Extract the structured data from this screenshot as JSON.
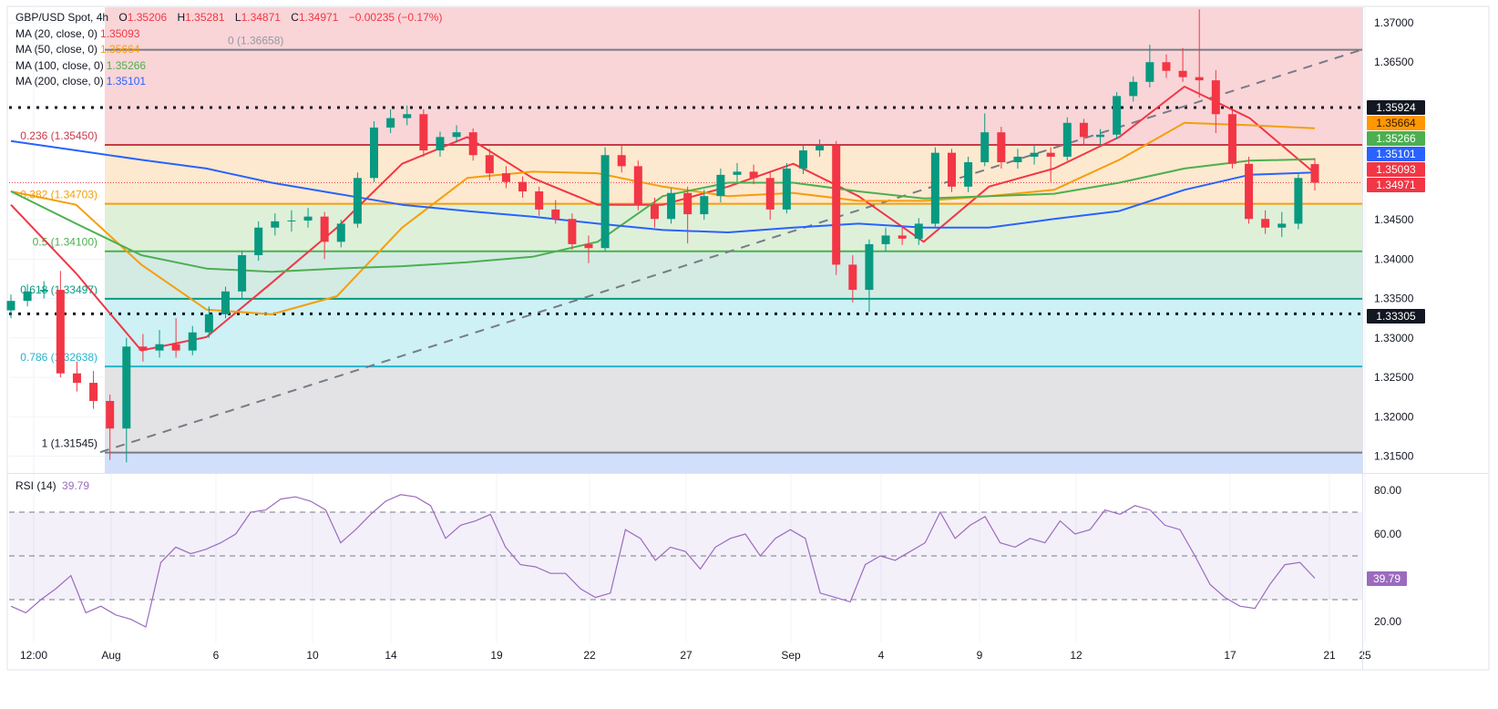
{
  "header": {
    "symbol": "GBP/USD Spot, 4h",
    "open_label": "O",
    "open": "1.35206",
    "high_label": "H",
    "high": "1.35281",
    "low_label": "L",
    "low": "1.34871",
    "close_label": "C",
    "close": "1.34971",
    "change": "−0.00235 (−0.17%)"
  },
  "colors": {
    "up": "#089981",
    "down": "#f23645",
    "ma20": "#f23645",
    "ma50": "#f59e0b",
    "ma100": "#4caf50",
    "ma200": "#2962ff",
    "rsi": "#9c6bbf",
    "dark_badge": "#131722"
  },
  "chart_data": {
    "type": "candlestick",
    "candles_ohlc": [
      [
        1.3335,
        1.3355,
        1.3325,
        1.3347
      ],
      [
        1.3347,
        1.3368,
        1.334,
        1.3359
      ],
      [
        1.3359,
        1.3372,
        1.335,
        1.3361
      ],
      [
        1.3361,
        1.3385,
        1.325,
        1.3255
      ],
      [
        1.3255,
        1.327,
        1.3232,
        1.3243
      ],
      [
        1.3243,
        1.3258,
        1.321,
        1.322
      ],
      [
        1.322,
        1.3228,
        1.3145,
        1.3185
      ],
      [
        1.3185,
        1.33,
        1.3142,
        1.3289
      ],
      [
        1.3289,
        1.3305,
        1.327,
        1.3284
      ],
      [
        1.3284,
        1.331,
        1.3275,
        1.3292
      ],
      [
        1.3292,
        1.3325,
        1.3275,
        1.3284
      ],
      [
        1.3284,
        1.3315,
        1.3278,
        1.3307
      ],
      [
        1.3307,
        1.334,
        1.33,
        1.333
      ],
      [
        1.333,
        1.3365,
        1.3325,
        1.3359
      ],
      [
        1.3359,
        1.341,
        1.335,
        1.3405
      ],
      [
        1.3405,
        1.3448,
        1.3398,
        1.344
      ],
      [
        1.344,
        1.3458,
        1.343,
        1.3448
      ],
      [
        1.3448,
        1.3462,
        1.3435,
        1.3449
      ],
      [
        1.3449,
        1.3465,
        1.344,
        1.3454
      ],
      [
        1.3454,
        1.346,
        1.34,
        1.3422
      ],
      [
        1.3422,
        1.345,
        1.3415,
        1.3445
      ],
      [
        1.3445,
        1.351,
        1.344,
        1.3503
      ],
      [
        1.3503,
        1.3575,
        1.3498,
        1.3567
      ],
      [
        1.3567,
        1.359,
        1.356,
        1.3579
      ],
      [
        1.3579,
        1.3595,
        1.357,
        1.3584
      ],
      [
        1.3584,
        1.359,
        1.353,
        1.3538
      ],
      [
        1.3538,
        1.3562,
        1.353,
        1.3555
      ],
      [
        1.3555,
        1.357,
        1.3548,
        1.3561
      ],
      [
        1.3561,
        1.3566,
        1.3525,
        1.3532
      ],
      [
        1.3532,
        1.354,
        1.35,
        1.3509
      ],
      [
        1.3509,
        1.3518,
        1.349,
        1.3498
      ],
      [
        1.3498,
        1.3505,
        1.3478,
        1.3486
      ],
      [
        1.3486,
        1.3492,
        1.3455,
        1.3463
      ],
      [
        1.3463,
        1.3475,
        1.3445,
        1.3451
      ],
      [
        1.3451,
        1.3458,
        1.3412,
        1.3419
      ],
      [
        1.3419,
        1.343,
        1.3395,
        1.3414
      ],
      [
        1.3414,
        1.3542,
        1.341,
        1.3532
      ],
      [
        1.3532,
        1.3545,
        1.351,
        1.3518
      ],
      [
        1.3518,
        1.3525,
        1.3462,
        1.3469
      ],
      [
        1.3469,
        1.3478,
        1.344,
        1.3451
      ],
      [
        1.3451,
        1.349,
        1.3445,
        1.3484
      ],
      [
        1.3484,
        1.3492,
        1.342,
        1.3457
      ],
      [
        1.3457,
        1.3488,
        1.345,
        1.348
      ],
      [
        1.348,
        1.3515,
        1.3472,
        1.3507
      ],
      [
        1.3507,
        1.3522,
        1.3498,
        1.3511
      ],
      [
        1.3511,
        1.352,
        1.3495,
        1.3503
      ],
      [
        1.3503,
        1.351,
        1.345,
        1.3463
      ],
      [
        1.3463,
        1.3522,
        1.3458,
        1.3515
      ],
      [
        1.3515,
        1.3545,
        1.3508,
        1.3538
      ],
      [
        1.3538,
        1.3552,
        1.353,
        1.3544
      ],
      [
        1.3544,
        1.355,
        1.338,
        1.3393
      ],
      [
        1.3393,
        1.3405,
        1.3345,
        1.3361
      ],
      [
        1.3361,
        1.3425,
        1.3333,
        1.3419
      ],
      [
        1.3419,
        1.344,
        1.341,
        1.343
      ],
      [
        1.343,
        1.3442,
        1.3418,
        1.3426
      ],
      [
        1.3426,
        1.3452,
        1.3418,
        1.3445
      ],
      [
        1.3445,
        1.3542,
        1.344,
        1.3535
      ],
      [
        1.3535,
        1.354,
        1.3485,
        1.3492
      ],
      [
        1.3492,
        1.353,
        1.3485,
        1.3523
      ],
      [
        1.3523,
        1.3585,
        1.3518,
        1.3561
      ],
      [
        1.3561,
        1.3568,
        1.3515,
        1.3523
      ],
      [
        1.3523,
        1.354,
        1.3515,
        1.353
      ],
      [
        1.353,
        1.3545,
        1.352,
        1.3535
      ],
      [
        1.3535,
        1.3542,
        1.3498,
        1.353
      ],
      [
        1.353,
        1.358,
        1.3525,
        1.3573
      ],
      [
        1.3573,
        1.3578,
        1.3545,
        1.3555
      ],
      [
        1.3555,
        1.3565,
        1.3545,
        1.3558
      ],
      [
        1.3558,
        1.3612,
        1.3552,
        1.3607
      ],
      [
        1.3607,
        1.3632,
        1.36,
        1.3625
      ],
      [
        1.3625,
        1.3672,
        1.3618,
        1.365
      ],
      [
        1.365,
        1.366,
        1.363,
        1.3639
      ],
      [
        1.3639,
        1.3668,
        1.3625,
        1.3631
      ],
      [
        1.3631,
        1.3717,
        1.3605,
        1.3627
      ],
      [
        1.3627,
        1.364,
        1.356,
        1.3584
      ],
      [
        1.3584,
        1.359,
        1.3515,
        1.3521
      ],
      [
        1.3521,
        1.353,
        1.3445,
        1.3451
      ],
      [
        1.3451,
        1.3462,
        1.3432,
        1.344
      ],
      [
        1.344,
        1.346,
        1.3428,
        1.3445
      ],
      [
        1.3445,
        1.351,
        1.3438,
        1.3503
      ],
      [
        1.35206,
        1.35281,
        1.34871,
        1.34971
      ]
    ],
    "moving_averages": [
      {
        "label": "MA (20, close, 0)",
        "value": "1.35093",
        "color": "#f23645",
        "values": [
          1.3469,
          1.3382,
          1.3284,
          1.3301,
          1.337,
          1.344,
          1.3521,
          1.3555,
          1.3503,
          1.3469,
          1.3469,
          1.3492,
          1.3521,
          1.348,
          1.3422,
          1.3492,
          1.3515,
          1.3555,
          1.3619,
          1.3579,
          1.3509
        ]
      },
      {
        "label": "MA (50, close, 0)",
        "value": "1.35664",
        "color": "#f59e0b",
        "values": [
          1.3486,
          1.3469,
          1.3393,
          1.3336,
          1.333,
          1.3353,
          1.344,
          1.3503,
          1.3511,
          1.3509,
          1.3492,
          1.348,
          1.3484,
          1.3474,
          1.3474,
          1.348,
          1.3488,
          1.3526,
          1.3573,
          1.357,
          1.3566
        ]
      },
      {
        "label": "MA (100, close, 0)",
        "value": "1.35266",
        "color": "#4caf50",
        "values": [
          1.3486,
          1.3445,
          1.3405,
          1.3388,
          1.3384,
          1.3388,
          1.3391,
          1.3396,
          1.3403,
          1.3422,
          1.348,
          1.3497,
          1.3497,
          1.3486,
          1.3477,
          1.348,
          1.3483,
          1.3497,
          1.3515,
          1.3525,
          1.3527
        ]
      },
      {
        "label": "MA (200, close, 0)",
        "value": "1.35101",
        "color": "#2962ff",
        "values": [
          1.355,
          1.3538,
          1.3526,
          1.3515,
          1.3497,
          1.3483,
          1.3469,
          1.3461,
          1.3454,
          1.3445,
          1.3437,
          1.3434,
          1.344,
          1.3445,
          1.344,
          1.344,
          1.3451,
          1.3461,
          1.3488,
          1.3507,
          1.351
        ]
      }
    ],
    "fibonacci": [
      {
        "ratio": "0",
        "price": 1.36658,
        "label": "0 (1.36658)",
        "line": "#787b86",
        "fill": "#f9d5d8"
      },
      {
        "ratio": "0.236",
        "price": 1.3545,
        "label": "0.236 (1.35450)",
        "line": "#c83a4a",
        "fill": "#fde9cf"
      },
      {
        "ratio": "0.382",
        "price": 1.34703,
        "label": "0.382 (1.34703)",
        "line": "#f59e0b",
        "fill": "#dff0d9"
      },
      {
        "ratio": "0.5",
        "price": 1.341,
        "label": "0.5 (1.34100)",
        "line": "#4caf50",
        "fill": "#d3ebe3"
      },
      {
        "ratio": "0.618",
        "price": 1.33497,
        "label": "0.618 (1.33497)",
        "line": "#089981",
        "fill": "#cdf1f4"
      },
      {
        "ratio": "0.786",
        "price": 1.32638,
        "label": "0.786 (1.32638)",
        "line": "#26b5cc",
        "fill": "#e3e3e5"
      },
      {
        "ratio": "1",
        "price": 1.31545,
        "label": "1 (1.31545)",
        "line": "#787b86",
        "fill": "#d2dffb"
      }
    ],
    "horizontal_lines": [
      {
        "price": 1.35924,
        "label": "1.35924",
        "style": "dotted"
      },
      {
        "price": 1.33305,
        "label": "1.33305",
        "style": "dotted"
      }
    ],
    "trendline": {
      "from_price": 1.3155,
      "to_price": 1.3666,
      "style": "dashed"
    },
    "price_axis": {
      "ticks": [
        "1.37000",
        "1.36500",
        "1.34500",
        "1.34000",
        "1.33500",
        "1.33000",
        "1.32500",
        "1.32000",
        "1.31500"
      ],
      "tick_values": [
        1.37,
        1.365,
        1.345,
        1.34,
        1.335,
        1.33,
        1.325,
        1.32,
        1.315
      ],
      "badges": [
        {
          "label": "1.35924",
          "color": "#131722",
          "text": "#ffffff"
        },
        {
          "label": "1.35664",
          "color": "#ff9800",
          "text": "#3a1a00"
        },
        {
          "label": "1.35266",
          "color": "#4caf50",
          "text": "#ffffff"
        },
        {
          "label": "1.35101",
          "color": "#2962ff",
          "text": "#ffffff"
        },
        {
          "label": "1.35093",
          "color": "#f23645",
          "text": "#ffffff"
        },
        {
          "label": "1.34971",
          "color": "#f23645",
          "text": "#ffffff"
        },
        {
          "label": "1.33305",
          "color": "#131722",
          "text": "#ffffff"
        }
      ]
    },
    "time_axis": {
      "ticks": [
        "12:00",
        "Aug",
        "6",
        "10",
        "14",
        "19",
        "22",
        "27",
        "Sep",
        "4",
        "9",
        "12",
        "17",
        "21",
        "25"
      ]
    },
    "rsi": {
      "label": "RSI (14)",
      "value": "39.79",
      "ylim": [
        10,
        90
      ],
      "levels": [
        30,
        50,
        70
      ],
      "ticks": [
        "80.00",
        "60.00",
        "20.00"
      ],
      "tick_values": [
        80,
        60,
        20
      ],
      "values": [
        27,
        24,
        30,
        35,
        41,
        24,
        27,
        23,
        21,
        17.5,
        47,
        54,
        51,
        53,
        56,
        60,
        70,
        71,
        76,
        77,
        75,
        71,
        56,
        62,
        69,
        75,
        78,
        77,
        73,
        58,
        64,
        66,
        69,
        54,
        46,
        45,
        42,
        42,
        35,
        31,
        33,
        62,
        58,
        48,
        54,
        52,
        44,
        54,
        58,
        60,
        50,
        58,
        62,
        58,
        33,
        31,
        29,
        46,
        50,
        48,
        52,
        56,
        70,
        58,
        64,
        68,
        56,
        54,
        58,
        56,
        66,
        60,
        62,
        71,
        69,
        73,
        71,
        64,
        62,
        50,
        37,
        31,
        27,
        26,
        37,
        46,
        47,
        39.79
      ]
    }
  }
}
